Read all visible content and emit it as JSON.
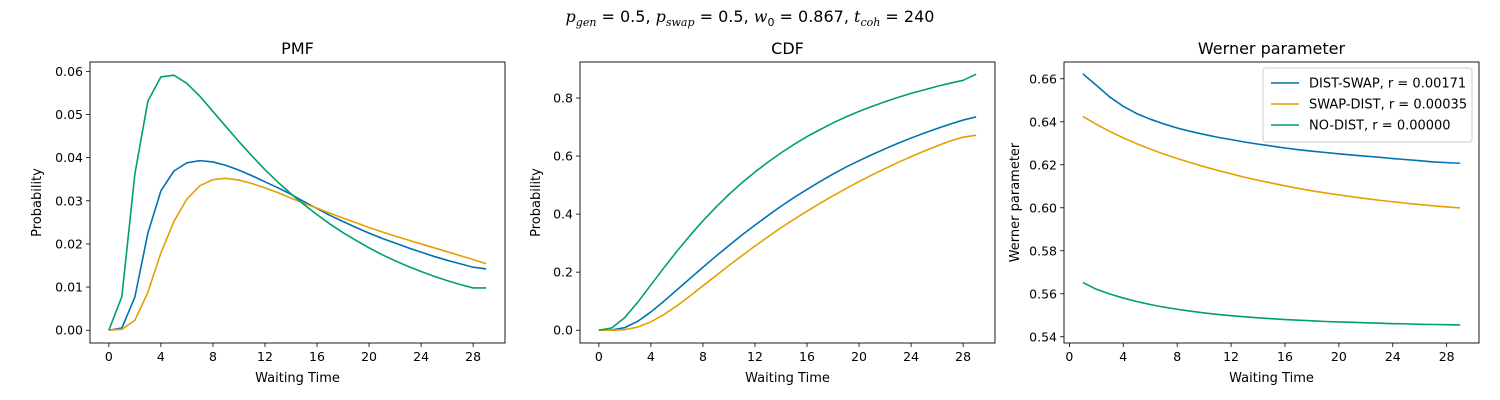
{
  "suptitle": {
    "p_gen": "0.5",
    "p_swap": "0.5",
    "w_0": "0.867",
    "t_coh": "240"
  },
  "colors": {
    "DIST-SWAP": "#0072b2",
    "SWAP-DIST": "#e69f00",
    "NO-DIST": "#009e73"
  },
  "chart_data": [
    {
      "type": "line",
      "title": "PMF",
      "xlabel": "Waiting Time",
      "ylabel": "Probability",
      "xlim": [
        -1.45,
        30.45
      ],
      "ylim": [
        -0.00296,
        0.06216
      ],
      "xticks": [
        0,
        4,
        8,
        12,
        16,
        20,
        24,
        28
      ],
      "yticks": [
        0.0,
        0.01,
        0.02,
        0.03,
        0.04,
        0.05,
        0.06
      ],
      "ytick_labels": [
        "0.00",
        "0.01",
        "0.02",
        "0.03",
        "0.04",
        "0.05",
        "0.06"
      ],
      "x": [
        0,
        1,
        2,
        3,
        4,
        5,
        6,
        7,
        8,
        9,
        10,
        11,
        12,
        13,
        14,
        15,
        16,
        17,
        18,
        19,
        20,
        21,
        22,
        23,
        24,
        25,
        26,
        27,
        28,
        29
      ],
      "series": [
        {
          "key": "DIST-SWAP",
          "values": [
            0.0,
            0.0005,
            0.0077,
            0.0225,
            0.0323,
            0.0369,
            0.0388,
            0.0393,
            0.039,
            0.0382,
            0.0371,
            0.0358,
            0.0344,
            0.033,
            0.0315,
            0.0298,
            0.0282,
            0.0266,
            0.0252,
            0.0238,
            0.0225,
            0.0213,
            0.0202,
            0.0191,
            0.0181,
            0.0171,
            0.0162,
            0.0154,
            0.0146,
            0.0142
          ]
        },
        {
          "key": "SWAP-DIST",
          "values": [
            0.0,
            0.0002,
            0.0023,
            0.0088,
            0.0179,
            0.0252,
            0.0304,
            0.0335,
            0.0349,
            0.0352,
            0.0348,
            0.034,
            0.033,
            0.0319,
            0.0306,
            0.0294,
            0.0283,
            0.0271,
            0.026,
            0.0249,
            0.0238,
            0.0228,
            0.0218,
            0.0209,
            0.02,
            0.0191,
            0.0182,
            0.0173,
            0.0164,
            0.0154
          ]
        },
        {
          "key": "NO-DIST",
          "values": [
            0.0,
            0.0078,
            0.0362,
            0.0531,
            0.0587,
            0.0591,
            0.0572,
            0.0542,
            0.0507,
            0.0472,
            0.0437,
            0.0404,
            0.0372,
            0.0343,
            0.0316,
            0.0291,
            0.0268,
            0.0246,
            0.0226,
            0.0208,
            0.0191,
            0.0175,
            0.0161,
            0.0148,
            0.0136,
            0.0125,
            0.0115,
            0.0106,
            0.0098,
            0.0098
          ]
        }
      ]
    },
    {
      "type": "line",
      "title": "CDF",
      "xlabel": "Waiting Time",
      "ylabel": "Probability",
      "xlim": [
        -1.45,
        30.45
      ],
      "ylim": [
        -0.044,
        0.924
      ],
      "xticks": [
        0,
        4,
        8,
        12,
        16,
        20,
        24,
        28
      ],
      "yticks": [
        0.0,
        0.2,
        0.4,
        0.6,
        0.8
      ],
      "ytick_labels": [
        "0.0",
        "0.2",
        "0.4",
        "0.6",
        "0.8"
      ],
      "x": [
        0,
        1,
        2,
        3,
        4,
        5,
        6,
        7,
        8,
        9,
        10,
        11,
        12,
        13,
        14,
        15,
        16,
        17,
        18,
        19,
        20,
        21,
        22,
        23,
        24,
        25,
        26,
        27,
        28,
        29
      ],
      "series": [
        {
          "key": "DIST-SWAP",
          "values": [
            0.0,
            0.001,
            0.009,
            0.031,
            0.063,
            0.1,
            0.139,
            0.178,
            0.217,
            0.255,
            0.292,
            0.328,
            0.362,
            0.395,
            0.427,
            0.457,
            0.485,
            0.512,
            0.538,
            0.562,
            0.584,
            0.605,
            0.625,
            0.644,
            0.662,
            0.679,
            0.695,
            0.71,
            0.724,
            0.735
          ]
        },
        {
          "key": "SWAP-DIST",
          "values": [
            0.0,
            0.0,
            0.002,
            0.011,
            0.029,
            0.054,
            0.084,
            0.118,
            0.153,
            0.188,
            0.223,
            0.257,
            0.29,
            0.322,
            0.353,
            0.382,
            0.41,
            0.437,
            0.463,
            0.488,
            0.512,
            0.535,
            0.557,
            0.578,
            0.598,
            0.617,
            0.635,
            0.652,
            0.665,
            0.672
          ]
        },
        {
          "key": "NO-DIST",
          "values": [
            0.0,
            0.008,
            0.044,
            0.097,
            0.156,
            0.215,
            0.272,
            0.326,
            0.377,
            0.424,
            0.468,
            0.508,
            0.545,
            0.579,
            0.611,
            0.64,
            0.667,
            0.691,
            0.714,
            0.735,
            0.754,
            0.771,
            0.787,
            0.802,
            0.816,
            0.828,
            0.84,
            0.851,
            0.861,
            0.882
          ]
        }
      ]
    },
    {
      "type": "line",
      "title": "Werner parameter",
      "xlabel": "Waiting Time",
      "ylabel": "Werner parameter",
      "xlim": [
        -0.4,
        30.4
      ],
      "ylim": [
        0.5371,
        0.6678
      ],
      "xticks": [
        0,
        4,
        8,
        12,
        16,
        20,
        24,
        28
      ],
      "yticks": [
        0.54,
        0.56,
        0.58,
        0.6,
        0.62,
        0.64,
        0.66
      ],
      "ytick_labels": [
        "0.54",
        "0.56",
        "0.58",
        "0.60",
        "0.62",
        "0.64",
        "0.66"
      ],
      "legend_position": "top-right",
      "x": [
        1,
        2,
        3,
        4,
        5,
        6,
        7,
        8,
        9,
        10,
        11,
        12,
        13,
        14,
        15,
        16,
        17,
        18,
        19,
        20,
        21,
        22,
        23,
        24,
        25,
        26,
        27,
        28,
        29
      ],
      "series": [
        {
          "key": "DIST-SWAP",
          "name": "DIST-SWAP, r = 0.00171",
          "values": [
            0.6623,
            0.657,
            0.6515,
            0.6472,
            0.6438,
            0.6412,
            0.639,
            0.6371,
            0.6355,
            0.6341,
            0.6328,
            0.6317,
            0.6306,
            0.6296,
            0.6287,
            0.6278,
            0.627,
            0.6263,
            0.6257,
            0.6251,
            0.6245,
            0.624,
            0.6235,
            0.6229,
            0.6224,
            0.6219,
            0.6213,
            0.621,
            0.6207
          ]
        },
        {
          "key": "SWAP-DIST",
          "name": "SWAP-DIST, r = 0.00035",
          "values": [
            0.6425,
            0.6388,
            0.6355,
            0.6325,
            0.6298,
            0.6273,
            0.625,
            0.6229,
            0.621,
            0.6191,
            0.6174,
            0.6158,
            0.6142,
            0.6128,
            0.6115,
            0.6102,
            0.609,
            0.6079,
            0.6069,
            0.606,
            0.6051,
            0.6043,
            0.6035,
            0.6028,
            0.6021,
            0.6015,
            0.6009,
            0.6004,
            0.5999
          ]
        },
        {
          "key": "NO-DIST",
          "name": "NO-DIST, r = 0.00000",
          "values": [
            0.5652,
            0.5621,
            0.5599,
            0.558,
            0.5564,
            0.555,
            0.5538,
            0.5528,
            0.5519,
            0.5511,
            0.5504,
            0.5498,
            0.5493,
            0.5488,
            0.5484,
            0.548,
            0.5477,
            0.5474,
            0.5471,
            0.5469,
            0.5467,
            0.5465,
            0.5463,
            0.5461,
            0.546,
            0.5458,
            0.5457,
            0.5456,
            0.5455
          ]
        }
      ]
    }
  ]
}
